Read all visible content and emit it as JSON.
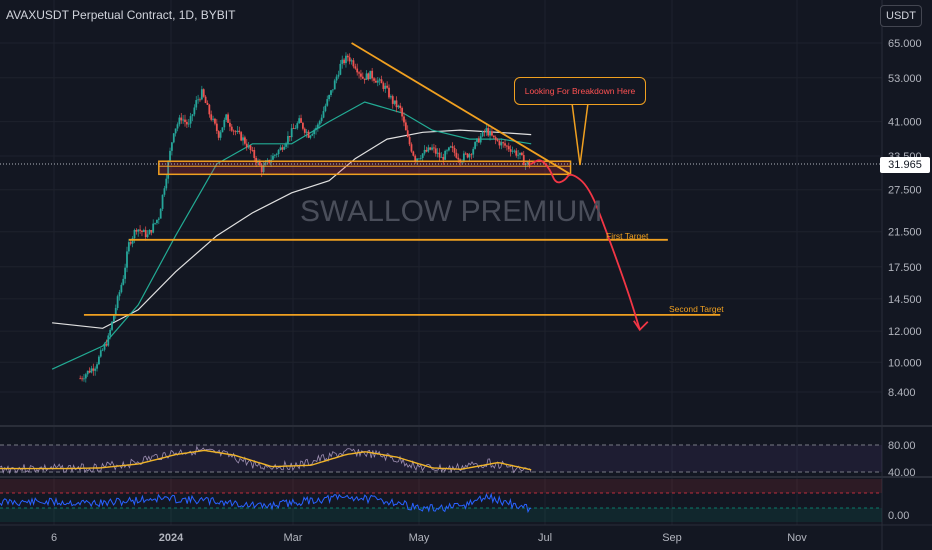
{
  "header": {
    "title": "AVAXUSDT Perpetual Contract, 1D, BYBIT"
  },
  "toolbar": {
    "currency_label": "USDT"
  },
  "current_price": "31.965",
  "watermark": "SWALLOW PREMIUM",
  "annotations": {
    "callout": "Looking For Breakdown Here",
    "first_target": "First Target",
    "second_target": "Second Target"
  },
  "chart_data": {
    "type": "line",
    "price_axis": {
      "scale": "log",
      "ticks": [
        65.0,
        53.0,
        41.0,
        33.5,
        27.5,
        21.5,
        17.5,
        14.5,
        12.0,
        10.0,
        8.4
      ],
      "tick_labels": [
        "65.000",
        "53.000",
        "41.000",
        "33.500",
        "27.500",
        "21.500",
        "17.500",
        "14.500",
        "12.000",
        "10.000",
        "8.400"
      ]
    },
    "rsi_axis": {
      "ticks": [
        80,
        40
      ],
      "tick_labels": [
        "80.00",
        "40.00"
      ]
    },
    "osc_axis": {
      "ticks": [
        0
      ],
      "tick_labels": [
        "0.00"
      ]
    },
    "time_axis": {
      "labels": [
        "6",
        "2024",
        "Mar",
        "May",
        "Jul",
        "Sep",
        "Nov"
      ]
    },
    "price_series": [
      [
        "2023-10-20",
        9.1
      ],
      [
        "2023-10-28",
        9.8
      ],
      [
        "2023-11-04",
        11.5
      ],
      [
        "2023-11-08",
        13.8
      ],
      [
        "2023-11-12",
        16.5
      ],
      [
        "2023-11-15",
        20.0
      ],
      [
        "2023-11-19",
        22.0
      ],
      [
        "2023-11-25",
        21.0
      ],
      [
        "2023-12-01",
        23.5
      ],
      [
        "2023-12-05",
        30.0
      ],
      [
        "2023-12-09",
        39.0
      ],
      [
        "2023-12-13",
        42.0
      ],
      [
        "2023-12-17",
        40.0
      ],
      [
        "2023-12-21",
        46.0
      ],
      [
        "2023-12-24",
        48.5
      ],
      [
        "2023-12-28",
        43.0
      ],
      [
        "2024-01-02",
        38.0
      ],
      [
        "2024-01-06",
        42.0
      ],
      [
        "2024-01-10",
        39.0
      ],
      [
        "2024-01-15",
        37.0
      ],
      [
        "2024-01-20",
        34.0
      ],
      [
        "2024-01-25",
        31.0
      ],
      [
        "2024-01-30",
        33.0
      ],
      [
        "2024-02-04",
        35.0
      ],
      [
        "2024-02-09",
        38.0
      ],
      [
        "2024-02-14",
        41.0
      ],
      [
        "2024-02-19",
        38.0
      ],
      [
        "2024-02-24",
        40.0
      ],
      [
        "2024-02-28",
        45.0
      ],
      [
        "2024-03-03",
        50.0
      ],
      [
        "2024-03-07",
        57.0
      ],
      [
        "2024-03-11",
        60.0
      ],
      [
        "2024-03-15",
        57.0
      ],
      [
        "2024-03-19",
        53.0
      ],
      [
        "2024-03-23",
        54.0
      ],
      [
        "2024-03-27",
        52.0
      ],
      [
        "2024-03-31",
        50.0
      ],
      [
        "2024-04-04",
        46.0
      ],
      [
        "2024-04-08",
        44.0
      ],
      [
        "2024-04-12",
        37.0
      ],
      [
        "2024-04-16",
        33.0
      ],
      [
        "2024-04-20",
        34.0
      ],
      [
        "2024-04-25",
        35.0
      ],
      [
        "2024-04-30",
        33.0
      ],
      [
        "2024-05-05",
        35.0
      ],
      [
        "2024-05-10",
        33.0
      ],
      [
        "2024-05-15",
        34.0
      ],
      [
        "2024-05-20",
        37.0
      ],
      [
        "2024-05-24",
        39.0
      ],
      [
        "2024-05-28",
        37.0
      ],
      [
        "2024-06-01",
        36.0
      ],
      [
        "2024-06-06",
        35.0
      ],
      [
        "2024-06-11",
        33.5
      ],
      [
        "2024-06-14",
        32.0
      ],
      [
        "2024-06-17",
        31.965
      ]
    ],
    "ma_slow": [
      [
        "2023-10-05",
        12.6
      ],
      [
        "2023-11-01",
        12.2
      ],
      [
        "2023-11-20",
        13.6
      ],
      [
        "2023-12-10",
        17.0
      ],
      [
        "2024-01-01",
        21.0
      ],
      [
        "2024-01-20",
        24.0
      ],
      [
        "2024-02-10",
        27.0
      ],
      [
        "2024-03-01",
        29.0
      ],
      [
        "2024-03-15",
        33.0
      ],
      [
        "2024-04-01",
        37.0
      ],
      [
        "2024-04-20",
        38.5
      ],
      [
        "2024-05-10",
        39.0
      ],
      [
        "2024-05-30",
        38.5
      ],
      [
        "2024-06-17",
        38.0
      ]
    ],
    "ma_fast": [
      [
        "2023-10-05",
        9.6
      ],
      [
        "2023-11-01",
        11.0
      ],
      [
        "2023-11-20",
        14.0
      ],
      [
        "2023-12-10",
        21.0
      ],
      [
        "2024-01-01",
        32.0
      ],
      [
        "2024-01-20",
        36.0
      ],
      [
        "2024-02-10",
        36.0
      ],
      [
        "2024-03-01",
        41.0
      ],
      [
        "2024-03-20",
        46.0
      ],
      [
        "2024-04-10",
        43.0
      ],
      [
        "2024-04-25",
        39.0
      ],
      [
        "2024-05-15",
        37.0
      ],
      [
        "2024-06-01",
        37.0
      ],
      [
        "2024-06-17",
        36.0
      ]
    ],
    "support_zone": {
      "low": 30.1,
      "high": 32.5,
      "from": "2023-12-01",
      "to": "2024-07-08"
    },
    "trendline": [
      [
        "2024-03-13",
        65.0
      ],
      [
        "2024-07-08",
        30.1
      ]
    ],
    "first_target": {
      "price": 20.5,
      "from": "2023-11-15",
      "to": "2024-08-29"
    },
    "second_target": {
      "price": 13.2,
      "from": "2023-10-22",
      "to": "2024-09-26"
    },
    "projection": [
      [
        "2024-06-17",
        32.0
      ],
      [
        "2024-06-22",
        33.0
      ],
      [
        "2024-06-27",
        31.0
      ],
      [
        "2024-06-30",
        28.5
      ],
      [
        "2024-07-05",
        29.0
      ],
      [
        "2024-07-08",
        30.5
      ],
      [
        "2024-07-18",
        28.0
      ],
      [
        "2024-07-28",
        21.0
      ],
      [
        "2024-08-08",
        15.0
      ],
      [
        "2024-08-14",
        12.1
      ]
    ],
    "rsi_series": [
      [
        "2023-10-05",
        45
      ],
      [
        "2023-10-25",
        46
      ],
      [
        "2023-11-15",
        52
      ],
      [
        "2023-12-05",
        66
      ],
      [
        "2023-12-20",
        72
      ],
      [
        "2024-01-05",
        65
      ],
      [
        "2024-01-25",
        48
      ],
      [
        "2024-02-15",
        50
      ],
      [
        "2024-03-05",
        66
      ],
      [
        "2024-03-15",
        70
      ],
      [
        "2024-04-01",
        62
      ],
      [
        "2024-04-20",
        46
      ],
      [
        "2024-05-05",
        44
      ],
      [
        "2024-05-25",
        54
      ],
      [
        "2024-06-17",
        40
      ]
    ],
    "osc_series": [
      [
        "2023-10-05",
        50
      ],
      [
        "2023-11-01",
        46
      ],
      [
        "2023-12-01",
        62
      ],
      [
        "2024-01-01",
        52
      ],
      [
        "2024-01-25",
        36
      ],
      [
        "2024-02-20",
        55
      ],
      [
        "2024-03-12",
        66
      ],
      [
        "2024-04-05",
        50
      ],
      [
        "2024-04-20",
        28
      ],
      [
        "2024-05-10",
        34
      ],
      [
        "2024-05-24",
        66
      ],
      [
        "2024-06-17",
        26
      ]
    ]
  }
}
